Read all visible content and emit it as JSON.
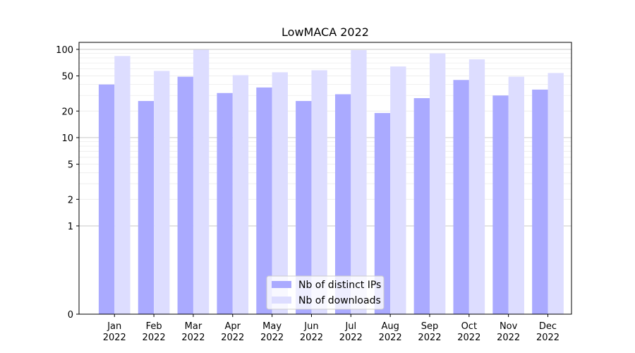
{
  "chart_data": {
    "type": "bar",
    "title": "LowMACA 2022",
    "xlabel": "",
    "ylabel": "",
    "y_scale": "symlog",
    "ylim": [
      0,
      120
    ],
    "yticks": [
      0,
      1,
      2,
      5,
      10,
      20,
      50,
      100
    ],
    "ytick_labels": [
      "0",
      "1",
      "2",
      "5",
      "10",
      "20",
      "50",
      "100"
    ],
    "grid": "horizontal",
    "legend_position": "lower-center",
    "categories": [
      "Jan\n2022",
      "Feb\n2022",
      "Mar\n2022",
      "Apr\n2022",
      "May\n2022",
      "Jun\n2022",
      "Jul\n2022",
      "Aug\n2022",
      "Sep\n2022",
      "Oct\n2022",
      "Nov\n2022",
      "Dec\n2022"
    ],
    "series": [
      {
        "name": "Nb of distinct IPs",
        "color": "#aaaaff",
        "values": [
          40,
          26,
          49,
          32,
          37,
          26,
          31,
          19,
          28,
          45,
          30,
          35
        ]
      },
      {
        "name": "Nb of downloads",
        "color": "#ddddff",
        "values": [
          84,
          57,
          99,
          51,
          55,
          58,
          98,
          64,
          90,
          77,
          49,
          54
        ]
      }
    ]
  }
}
